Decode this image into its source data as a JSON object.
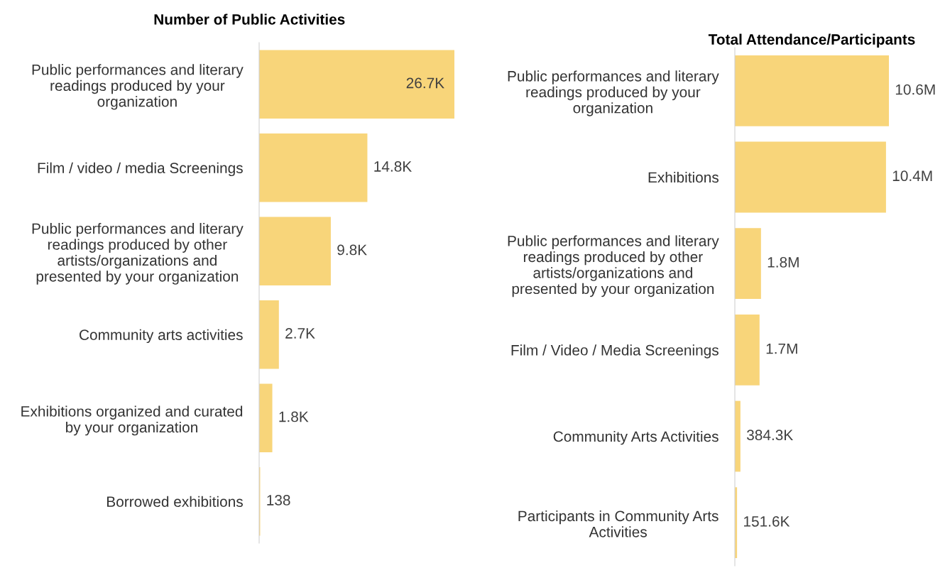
{
  "chart_data": [
    {
      "type": "bar",
      "orientation": "horizontal",
      "title": "Number of Public Activities",
      "categories": [
        "Public performances and literary\nreadings produced by your\norganization",
        "Film / video / media Screenings",
        "Public performances and literary\nreadings produced by other\nartists/organizations and\npresented by your organization",
        "Community arts activities",
        "Exhibitions organized and curated\nby your organization",
        "Borrowed exhibitions"
      ],
      "values": [
        26700,
        14800,
        9800,
        2700,
        1800,
        138
      ],
      "value_labels": [
        "26.7K",
        "14.8K",
        "9.8K",
        "2.7K",
        "1.8K",
        "138"
      ],
      "color": "#f8d57a",
      "grid": false,
      "legend": false,
      "tick_labels": "y"
    },
    {
      "type": "bar",
      "orientation": "horizontal",
      "title": "Total Attendance/Participants",
      "categories": [
        "Public performances and literary\nreadings produced by your\norganization",
        "Exhibitions",
        "Public performances and literary\nreadings produced by other\nartists/organizations and\npresented by your organization",
        "Film / Video / Media Screenings",
        "Community Arts Activities",
        "Participants in Community Arts\nActivities"
      ],
      "values": [
        10600000,
        10400000,
        1800000,
        1700000,
        384300,
        151600
      ],
      "value_labels": [
        "10.6M",
        "10.4M",
        "1.8M",
        "1.7M",
        "384.3K",
        "151.6K"
      ],
      "color": "#f8d57a",
      "grid": false,
      "legend": false,
      "tick_labels": "y"
    }
  ]
}
